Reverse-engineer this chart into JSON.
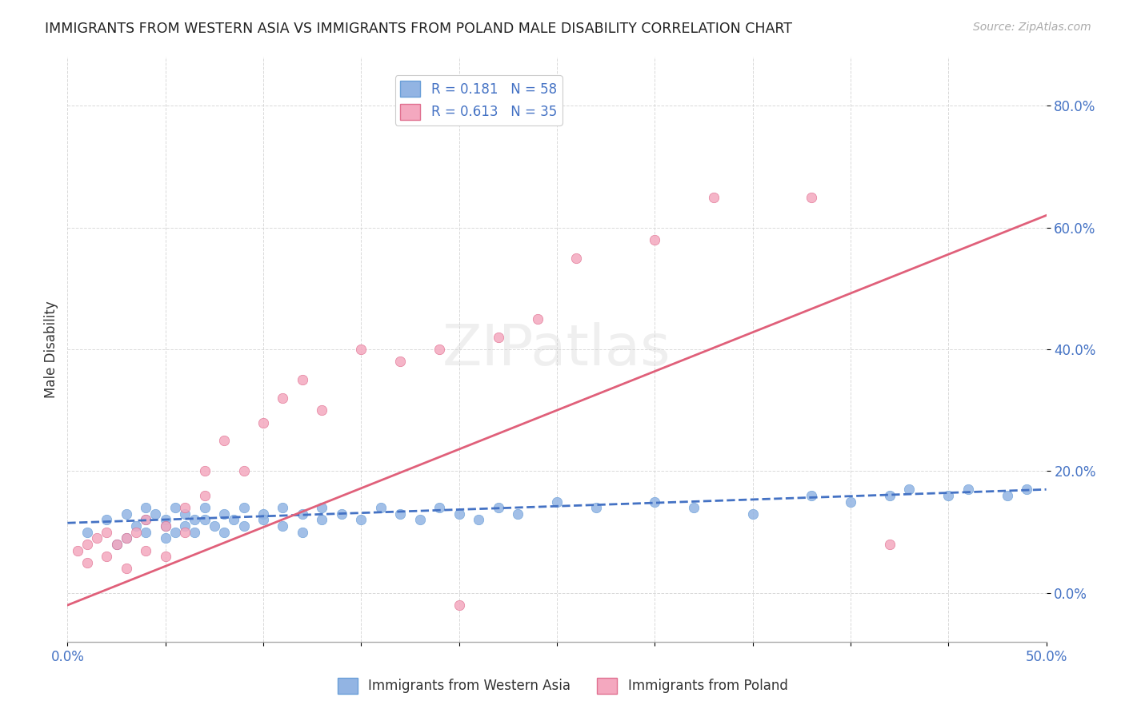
{
  "title": "IMMIGRANTS FROM WESTERN ASIA VS IMMIGRANTS FROM POLAND MALE DISABILITY CORRELATION CHART",
  "source_text": "Source: ZipAtlas.com",
  "xlabel": "",
  "ylabel": "Male Disability",
  "watermark": "ZIPatlas",
  "xlim": [
    0.0,
    0.5
  ],
  "ylim": [
    -0.08,
    0.88
  ],
  "xtick_labels": [
    "0.0%",
    "50.0%"
  ],
  "ytick_positions": [
    0.0,
    0.2,
    0.4,
    0.6,
    0.8
  ],
  "ytick_labels": [
    "0.0%",
    "20.0%",
    "40.0%",
    "60.0%",
    "80.0%"
  ],
  "legend1_label": "R = 0.181   N = 58",
  "legend2_label": "R = 0.613   N = 35",
  "blue_color": "#92b4e3",
  "pink_color": "#f4a8bf",
  "blue_edge": "#6a9fd8",
  "pink_edge": "#e07090",
  "blue_trend_color": "#4472c4",
  "pink_trend_color": "#e0607a",
  "blue_scatter_x": [
    0.01,
    0.02,
    0.025,
    0.03,
    0.03,
    0.035,
    0.04,
    0.04,
    0.04,
    0.045,
    0.05,
    0.05,
    0.05,
    0.055,
    0.055,
    0.06,
    0.06,
    0.065,
    0.065,
    0.07,
    0.07,
    0.075,
    0.08,
    0.08,
    0.085,
    0.09,
    0.09,
    0.1,
    0.1,
    0.11,
    0.11,
    0.12,
    0.12,
    0.13,
    0.13,
    0.14,
    0.15,
    0.16,
    0.17,
    0.18,
    0.19,
    0.2,
    0.21,
    0.22,
    0.23,
    0.25,
    0.27,
    0.3,
    0.32,
    0.35,
    0.38,
    0.4,
    0.42,
    0.43,
    0.45,
    0.46,
    0.48,
    0.49
  ],
  "blue_scatter_y": [
    0.1,
    0.12,
    0.08,
    0.13,
    0.09,
    0.11,
    0.14,
    0.1,
    0.12,
    0.13,
    0.11,
    0.12,
    0.09,
    0.1,
    0.14,
    0.13,
    0.11,
    0.12,
    0.1,
    0.14,
    0.12,
    0.11,
    0.13,
    0.1,
    0.12,
    0.14,
    0.11,
    0.13,
    0.12,
    0.14,
    0.11,
    0.13,
    0.1,
    0.14,
    0.12,
    0.13,
    0.12,
    0.14,
    0.13,
    0.12,
    0.14,
    0.13,
    0.12,
    0.14,
    0.13,
    0.15,
    0.14,
    0.15,
    0.14,
    0.13,
    0.16,
    0.15,
    0.16,
    0.17,
    0.16,
    0.17,
    0.16,
    0.17
  ],
  "pink_scatter_x": [
    0.005,
    0.01,
    0.01,
    0.015,
    0.02,
    0.02,
    0.025,
    0.03,
    0.03,
    0.035,
    0.04,
    0.04,
    0.05,
    0.05,
    0.06,
    0.06,
    0.07,
    0.07,
    0.08,
    0.09,
    0.1,
    0.11,
    0.12,
    0.13,
    0.15,
    0.17,
    0.19,
    0.2,
    0.22,
    0.24,
    0.26,
    0.3,
    0.33,
    0.38,
    0.42
  ],
  "pink_scatter_y": [
    0.07,
    0.08,
    0.05,
    0.09,
    0.06,
    0.1,
    0.08,
    0.09,
    0.04,
    0.1,
    0.07,
    0.12,
    0.11,
    0.06,
    0.14,
    0.1,
    0.16,
    0.2,
    0.25,
    0.2,
    0.28,
    0.32,
    0.35,
    0.3,
    0.4,
    0.38,
    0.4,
    -0.02,
    0.42,
    0.45,
    0.55,
    0.58,
    0.65,
    0.65,
    0.08
  ],
  "blue_trend_x": [
    0.0,
    0.5
  ],
  "blue_trend_y": [
    0.115,
    0.17
  ],
  "pink_trend_x": [
    0.0,
    0.5
  ],
  "pink_trend_y": [
    -0.02,
    0.62
  ],
  "grid_color": "#d0d0d0",
  "bg_color": "#ffffff"
}
